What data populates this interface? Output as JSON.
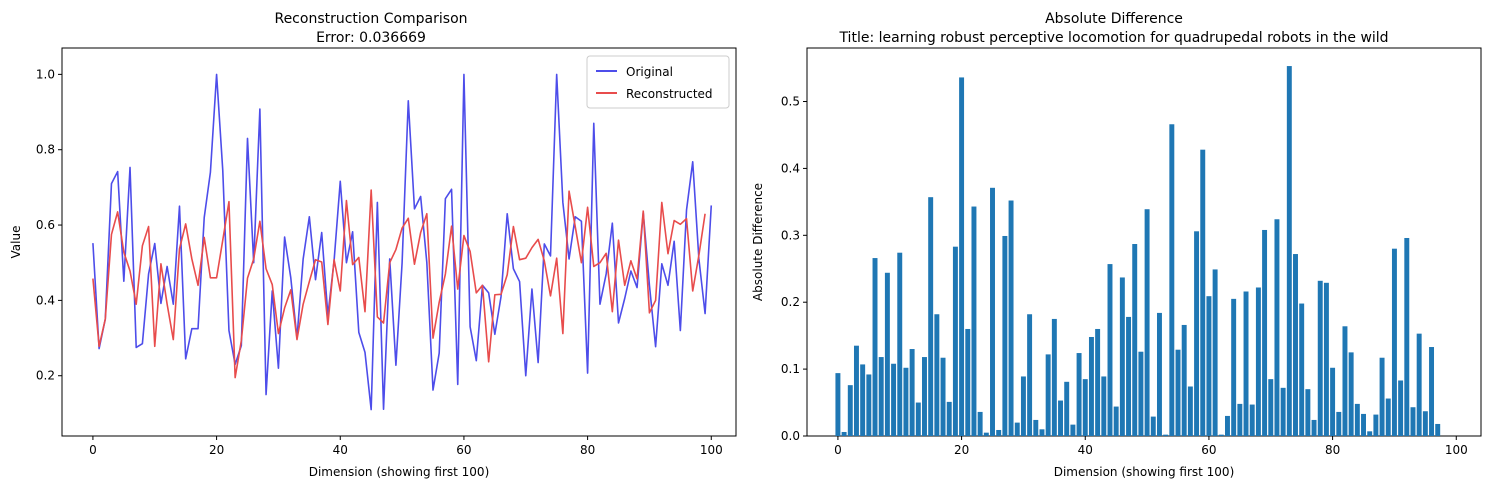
{
  "chart_data": [
    {
      "type": "line",
      "title": "Reconstruction Comparison",
      "subtitle": "Error: 0.036669",
      "xlabel": "Dimension (showing first 100)",
      "ylabel": "Value",
      "xlim": [
        -5,
        104
      ],
      "ylim": [
        0.04,
        1.07
      ],
      "xticks": [
        0,
        20,
        40,
        60,
        80,
        100
      ],
      "yticks": [
        0.2,
        0.4,
        0.6,
        0.8,
        1.0
      ],
      "xtick_labels": [
        "0",
        "20",
        "40",
        "60",
        "80",
        "100"
      ],
      "ytick_labels": [
        "0.2",
        "0.4",
        "0.6",
        "0.8",
        "1.0"
      ],
      "grid": false,
      "legend_position": "top-right",
      "series": [
        {
          "name": "Original",
          "color": "#4d4dea",
          "values": [
            0.552,
            0.272,
            0.35,
            0.71,
            0.742,
            0.451,
            0.753,
            0.275,
            0.285,
            0.47,
            0.551,
            0.392,
            0.49,
            0.39,
            0.65,
            0.245,
            0.325,
            0.325,
            0.62,
            0.74,
            1.0,
            0.745,
            0.32,
            0.23,
            0.28,
            0.83,
            0.5,
            0.908,
            0.15,
            0.425,
            0.22,
            0.568,
            0.46,
            0.3,
            0.51,
            0.622,
            0.455,
            0.58,
            0.36,
            0.505,
            0.716,
            0.5,
            0.582,
            0.315,
            0.262,
            0.11,
            0.66,
            0.111,
            0.51,
            0.228,
            0.499,
            0.93,
            0.643,
            0.676,
            0.5,
            0.162,
            0.26,
            0.67,
            0.695,
            0.177,
            1.0,
            0.33,
            0.24,
            0.44,
            0.42,
            0.31,
            0.41,
            0.63,
            0.484,
            0.45,
            0.2,
            0.43,
            0.235,
            0.55,
            0.518,
            1.0,
            0.66,
            0.51,
            0.622,
            0.61,
            0.207,
            0.87,
            0.39,
            0.47,
            0.605,
            0.34,
            0.405,
            0.478,
            0.434,
            0.633,
            0.44,
            0.277,
            0.497,
            0.44,
            0.557,
            0.32,
            0.64,
            0.768,
            0.51,
            0.365,
            0.652
          ]
        },
        {
          "name": "Reconstructed",
          "color": "#e84c4c",
          "values": [
            0.458,
            0.278,
            0.35,
            0.575,
            0.635,
            0.528,
            0.478,
            0.39,
            0.545,
            0.596,
            0.278,
            0.497,
            0.39,
            0.296,
            0.537,
            0.603,
            0.51,
            0.44,
            0.567,
            0.46,
            0.46,
            0.56,
            0.662,
            0.195,
            0.293,
            0.459,
            0.51,
            0.61,
            0.484,
            0.442,
            0.312,
            0.38,
            0.428,
            0.296,
            0.39,
            0.45,
            0.508,
            0.502,
            0.336,
            0.508,
            0.425,
            0.665,
            0.495,
            0.514,
            0.37,
            0.693,
            0.356,
            0.34,
            0.5,
            0.535,
            0.592,
            0.618,
            0.496,
            0.58,
            0.63,
            0.3,
            0.395,
            0.47,
            0.597,
            0.43,
            0.572,
            0.53,
            0.42,
            0.44,
            0.237,
            0.415,
            0.416,
            0.468,
            0.596,
            0.508,
            0.512,
            0.54,
            0.562,
            0.505,
            0.412,
            0.512,
            0.312,
            0.69,
            0.596,
            0.5,
            0.647,
            0.49,
            0.5,
            0.525,
            0.37,
            0.56,
            0.44,
            0.505,
            0.457,
            0.637,
            0.367,
            0.4,
            0.66,
            0.524,
            0.612,
            0.602,
            0.617,
            0.425,
            0.52,
            0.63
          ]
        }
      ]
    },
    {
      "type": "bar",
      "title": "Absolute Difference",
      "subtitle": "Title: learning robust perceptive locomotion for quadrupedal robots in the wild",
      "xlabel": "Dimension (showing first 100)",
      "ylabel": "Absolute Difference",
      "xlim": [
        -5,
        104
      ],
      "ylim": [
        0,
        0.58
      ],
      "xticks": [
        0,
        20,
        40,
        60,
        80,
        100
      ],
      "yticks": [
        0.0,
        0.1,
        0.2,
        0.3,
        0.4,
        0.5
      ],
      "xtick_labels": [
        "0",
        "20",
        "40",
        "60",
        "80",
        "100"
      ],
      "ytick_labels": [
        "0.0",
        "0.1",
        "0.2",
        "0.3",
        "0.4",
        "0.5"
      ],
      "grid": false,
      "bar_color": "#1f77b4",
      "values": [
        0.094,
        0.006,
        0.076,
        0.135,
        0.107,
        0.092,
        0.266,
        0.118,
        0.244,
        0.108,
        0.274,
        0.102,
        0.13,
        0.05,
        0.118,
        0.357,
        0.182,
        0.117,
        0.051,
        0.283,
        0.536,
        0.16,
        0.343,
        0.036,
        0.005,
        0.371,
        0.009,
        0.299,
        0.352,
        0.02,
        0.089,
        0.182,
        0.024,
        0.01,
        0.122,
        0.175,
        0.053,
        0.081,
        0.017,
        0.124,
        0.085,
        0.148,
        0.16,
        0.089,
        0.257,
        0.044,
        0.237,
        0.178,
        0.287,
        0.126,
        0.339,
        0.029,
        0.184,
        0.002,
        0.466,
        0.129,
        0.166,
        0.074,
        0.306,
        0.428,
        0.209,
        0.249,
        0.002,
        0.03,
        0.205,
        0.048,
        0.216,
        0.047,
        0.222,
        0.308,
        0.085,
        0.324,
        0.072,
        0.553,
        0.272,
        0.198,
        0.07,
        0.024,
        0.232,
        0.229,
        0.102,
        0.036,
        0.164,
        0.125,
        0.048,
        0.033,
        0.007,
        0.032,
        0.117,
        0.056,
        0.28,
        0.083,
        0.296,
        0.043,
        0.153,
        0.037,
        0.133,
        0.018
      ]
    }
  ]
}
